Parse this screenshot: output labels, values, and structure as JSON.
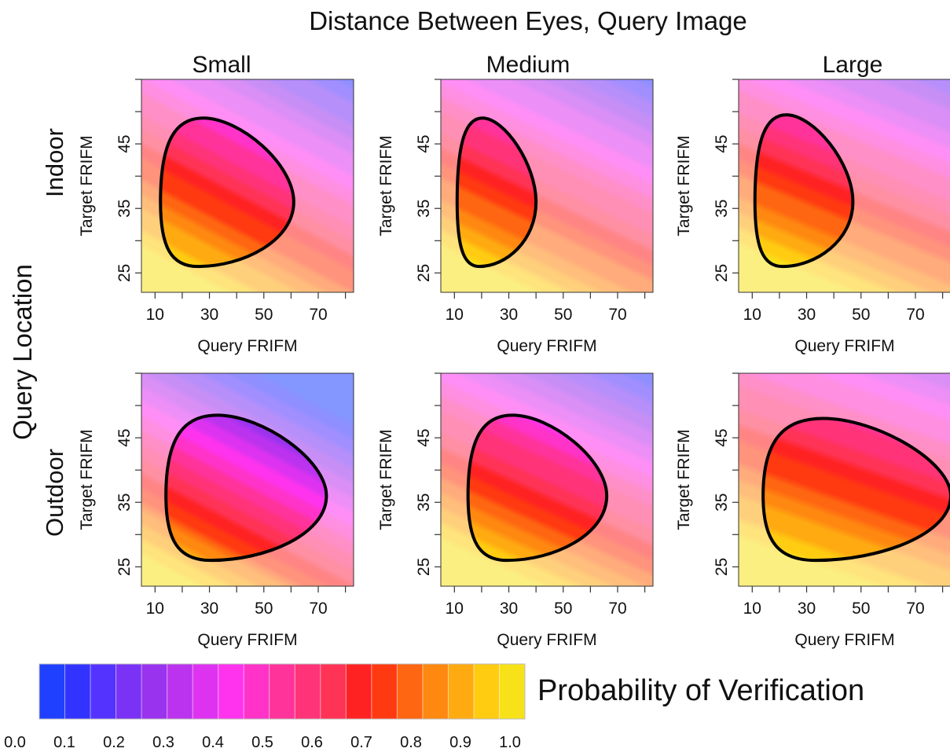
{
  "figure": {
    "title": "Distance Between Eyes, Query Image",
    "row_group_label": "Query Location",
    "column_labels": [
      "Small",
      "Medium",
      "Large"
    ],
    "row_labels": [
      "Indoor",
      "Outdoor"
    ]
  },
  "legend": {
    "label": "Probability of Verification",
    "tick_labels": [
      "0.0",
      "0.1",
      "0.2",
      "0.3",
      "0.4",
      "0.5",
      "0.6",
      "0.7",
      "0.8",
      "0.9",
      "1.0"
    ],
    "colors": [
      "#2040ff",
      "#3333ff",
      "#5533ff",
      "#7a33f5",
      "#9933ee",
      "#bb33ee",
      "#dd33f0",
      "#ff33ee",
      "#ff33c8",
      "#ff3399",
      "#ff3377",
      "#ff3355",
      "#ff2222",
      "#ff3a11",
      "#ff6611",
      "#ff8811",
      "#ffaa11",
      "#ffcc11",
      "#f7e21a"
    ]
  },
  "chart_data": [
    {
      "type": "heatmap",
      "row": "Indoor",
      "column": "Small",
      "xlabel": "Query FRIFM",
      "ylabel": "Target FRIFM",
      "xlim": [
        5,
        83
      ],
      "ylim": [
        22,
        55
      ],
      "xticks": [
        "10",
        "30",
        "50",
        "70"
      ],
      "yticks": [
        "25",
        "35",
        "45"
      ],
      "prob_at_origin": 1.0,
      "prob_slope_x": 0.0126,
      "prob_slope_y": 0.01,
      "region": {
        "x_min": 12,
        "x_max": 61,
        "y_min": 26,
        "y_max": 49,
        "y_at_tip": 36
      }
    },
    {
      "type": "heatmap",
      "row": "Indoor",
      "column": "Medium",
      "xlabel": "Query FRIFM",
      "ylabel": "Target FRIFM",
      "xlim": [
        5,
        83
      ],
      "ylim": [
        22,
        55
      ],
      "xticks": [
        "10",
        "30",
        "50",
        "70"
      ],
      "yticks": [
        "25",
        "35",
        "45"
      ],
      "prob_at_origin": 1.0,
      "prob_slope_x": 0.0126,
      "prob_slope_y": 0.011,
      "region": {
        "x_min": 11,
        "x_max": 40,
        "y_min": 26,
        "y_max": 49,
        "y_at_tip": 36
      }
    },
    {
      "type": "heatmap",
      "row": "Indoor",
      "column": "Large",
      "xlabel": "Query FRIFM",
      "ylabel": "Target FRIFM",
      "xlim": [
        5,
        83
      ],
      "ylim": [
        22,
        55
      ],
      "xticks": [
        "10",
        "30",
        "50",
        "70"
      ],
      "yticks": [
        "25",
        "35",
        "45"
      ],
      "prob_at_origin": 1.0,
      "prob_slope_x": 0.0118,
      "prob_slope_y": 0.012,
      "region": {
        "x_min": 11,
        "x_max": 47,
        "y_min": 26,
        "y_max": 49.5,
        "y_at_tip": 36
      }
    },
    {
      "type": "heatmap",
      "row": "Outdoor",
      "column": "Small",
      "xlabel": "Query FRIFM",
      "ylabel": "Target FRIFM",
      "xlim": [
        5,
        83
      ],
      "ylim": [
        22,
        55
      ],
      "xticks": [
        "10",
        "30",
        "50",
        "70"
      ],
      "yticks": [
        "25",
        "35",
        "45"
      ],
      "prob_at_origin": 0.95,
      "prob_slope_x": 0.015,
      "prob_slope_y": 0.012,
      "region": {
        "x_min": 14,
        "x_max": 73,
        "y_min": 26,
        "y_max": 48.5,
        "y_at_tip": 36
      }
    },
    {
      "type": "heatmap",
      "row": "Outdoor",
      "column": "Medium",
      "xlabel": "Query FRIFM",
      "ylabel": "Target FRIFM",
      "xlim": [
        5,
        83
      ],
      "ylim": [
        22,
        55
      ],
      "xticks": [
        "10",
        "30",
        "50",
        "70"
      ],
      "yticks": [
        "25",
        "35",
        "45"
      ],
      "prob_at_origin": 1.0,
      "prob_slope_x": 0.013,
      "prob_slope_y": 0.012,
      "region": {
        "x_min": 15,
        "x_max": 66,
        "y_min": 26,
        "y_max": 48.5,
        "y_at_tip": 36
      }
    },
    {
      "type": "heatmap",
      "row": "Outdoor",
      "column": "Large",
      "xlabel": "Query FRIFM",
      "ylabel": "Target FRIFM",
      "xlim": [
        5,
        83
      ],
      "ylim": [
        22,
        55
      ],
      "xticks": [
        "10",
        "30",
        "50",
        "70"
      ],
      "yticks": [
        "25",
        "35",
        "45"
      ],
      "prob_at_origin": 1.0,
      "prob_slope_x": 0.01,
      "prob_slope_y": 0.012,
      "region": {
        "x_min": 14,
        "x_max": 83,
        "y_min": 26,
        "y_max": 48,
        "y_at_tip": 36
      }
    }
  ]
}
